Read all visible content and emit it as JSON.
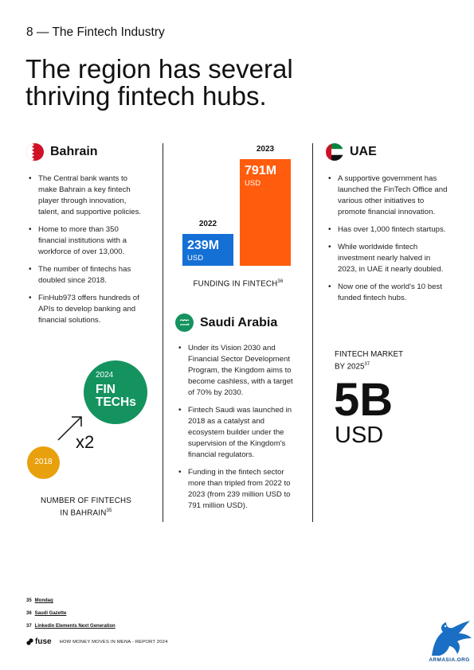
{
  "page": {
    "section_label": "8 — The Fintech Industry",
    "headline_line1": "The region has several",
    "headline_line2": "thriving fintech hubs."
  },
  "bahrain": {
    "name": "Bahrain",
    "bullets": [
      "The Central bank wants to make Bahrain a key fintech player through innovation, talent, and supportive policies.",
      "Home to more than 350 financial institutions with a workforce of over 13,000.",
      "The number of fintechs has doubled since 2018.",
      "FinHub973 offers hundreds of APIs to develop banking and financial solutions."
    ],
    "growth_graphic": {
      "year_from": "2018",
      "year_to": "2024",
      "big_label_line1": "FIN",
      "big_label_line2": "TECHs",
      "multiplier": "x2",
      "caption_line1": "NUMBER OF FINTECHS",
      "caption_line2": "IN BAHRAIN",
      "caption_ref": "35",
      "colors": {
        "from_circle": "#E8A10C",
        "to_circle": "#14935F"
      }
    }
  },
  "funding_chart": {
    "caption": "FUNDING IN FINTECH",
    "caption_ref": "36",
    "colors": {
      "2022": "#1570D6",
      "2023": "#FF5C0D"
    }
  },
  "chart_data": {
    "type": "bar",
    "title": "FUNDING IN FINTECH",
    "categories": [
      "2022",
      "2023"
    ],
    "values": [
      239,
      791
    ],
    "value_labels": [
      "239M",
      "791M"
    ],
    "unit": "USD",
    "xlabel": "",
    "ylabel": "",
    "ylim": [
      0,
      791
    ],
    "grid": false
  },
  "saudi": {
    "name": "Saudi Arabia",
    "bullets": [
      "Under its Vision 2030 and Financial Sector Development Program, the Kingdom aims to become cashless, with a target of 70% by 2030.",
      "Fintech Saudi was launched in 2018 as a catalyst and ecosystem builder under the supervision of the Kingdom's financial regulators.",
      "Funding in the fintech sector more than tripled from 2022 to 2023 (from 239 million USD to 791 million USD)."
    ]
  },
  "uae": {
    "name": "UAE",
    "bullets": [
      "A supportive government has launched the FinTech Office and various other initiatives to promote financial innovation.",
      "Has over 1,000 fintech startups.",
      "While worldwide fintech investment nearly halved in 2023, in UAE it nearly doubled.",
      "Now one of the world's 10 best funded fintech hubs."
    ],
    "market_label_line1": "FINTECH MARKET",
    "market_label_line2": "BY 2025",
    "market_ref": "37",
    "market_value": "5B",
    "market_unit": "USD"
  },
  "footnotes": [
    {
      "num": "35",
      "source": "Mondaq"
    },
    {
      "num": "36",
      "source": "Saudi Gazette"
    },
    {
      "num": "37",
      "source": "Linkedin Elements Next Generation"
    }
  ],
  "footer": {
    "brand": "fuse",
    "report_title": "HOW MONEY MOVES IN MENA - REPORT 2024",
    "watermark": "ARMASIA.ORG"
  }
}
